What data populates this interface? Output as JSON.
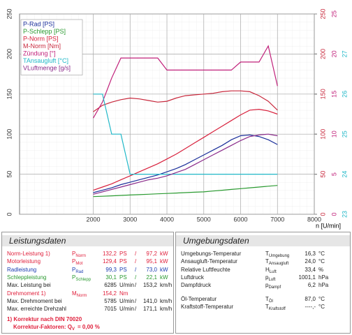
{
  "chart_data": {
    "type": "line",
    "x": [
      2000,
      2250,
      2500,
      2750,
      3000,
      3250,
      3500,
      3750,
      4000,
      4250,
      4500,
      4750,
      5000,
      5250,
      5500,
      5750,
      6000,
      6250,
      6500,
      6750,
      7000
    ],
    "xlabel": "n [U/min]",
    "xlim": [
      0,
      8000
    ],
    "xticks": [
      2000,
      3000,
      4000,
      5000,
      6000,
      7000,
      8000
    ],
    "ylim": [
      0,
      250
    ],
    "yticks": [
      0,
      50,
      100,
      150,
      200,
      250
    ],
    "y2lim": [
      0,
      250
    ],
    "y2ticks": [
      0,
      50,
      100,
      150,
      200,
      250
    ],
    "y3lim": [
      0,
      25
    ],
    "y3ticks": [
      0,
      5,
      10,
      15,
      20,
      25
    ],
    "y4lim": [
      23,
      28
    ],
    "y4ticks": [
      23,
      24,
      25,
      26,
      27
    ],
    "grid": true,
    "series": [
      {
        "name": "P-Rad [PS]",
        "color": "#1a2e9a",
        "values": [
          27,
          30,
          33,
          37,
          40,
          43,
          46,
          49,
          53,
          57,
          62,
          68,
          74,
          80,
          86,
          93,
          98,
          99,
          97,
          93,
          87
        ]
      },
      {
        "name": "P-Schlepp [PS]",
        "color": "#2a9a30",
        "values": [
          22,
          22.5,
          23,
          23.5,
          24,
          24.5,
          25,
          25.5,
          26,
          26.5,
          27,
          27.5,
          28,
          29,
          30,
          31,
          32,
          33,
          34,
          35,
          36
        ]
      },
      {
        "name": "P-Norm [PS]",
        "color": "#d8203c",
        "values": [
          30,
          34,
          38,
          43,
          48,
          53,
          58,
          63,
          69,
          75,
          82,
          89,
          96,
          103,
          110,
          117,
          124,
          130,
          131,
          129,
          125
        ]
      },
      {
        "name": "M-Norm [Nm]",
        "color": "#c8283c",
        "axis": "y2",
        "values": [
          128,
          136,
          140,
          143,
          145,
          144,
          142,
          140,
          141,
          145,
          148,
          149,
          150,
          151,
          153,
          154,
          154,
          153,
          148,
          141,
          130
        ]
      },
      {
        "name": "Zündung [°]",
        "color": "#c0207a",
        "axis": "y3",
        "values": [
          12,
          14,
          17,
          19.5,
          19.5,
          19.5,
          19.5,
          19.5,
          18,
          18,
          18,
          18,
          18,
          18,
          18,
          18,
          19,
          19,
          19,
          21,
          16
        ]
      },
      {
        "name": "TAnsaugluft [°C]",
        "color": "#20b8c8",
        "axis": "y4",
        "values": [
          26,
          26,
          25,
          25,
          24,
          24,
          24,
          24,
          24,
          24,
          24,
          24,
          24,
          24,
          24,
          24,
          24,
          24,
          24,
          24,
          24
        ]
      },
      {
        "name": "VLuftmenge [g/s]",
        "color": "#8a2a8a",
        "values": [
          25,
          28,
          31,
          34,
          37,
          40,
          43,
          45,
          48,
          52,
          56,
          62,
          68,
          74,
          80,
          86,
          92,
          97,
          99,
          100,
          98
        ]
      }
    ]
  },
  "leistungsdaten": {
    "title": "Leistungsdaten",
    "rows": [
      {
        "label": "Norm-Leistung 1)",
        "color": "#e0203c",
        "sym": "P",
        "sub": "Norm",
        "v1": "132,2",
        "u1": "PS",
        "sep": "/",
        "v2": "97,2",
        "u2": "kW"
      },
      {
        "label": "Motorleistung",
        "color": "#e0203c",
        "sym": "P",
        "sub": "Mot",
        "v1": "129,4",
        "u1": "PS",
        "sep": "/",
        "v2": "95,1",
        "u2": "kW"
      },
      {
        "label": "Radleistung",
        "color": "#1a3cb0",
        "sym": "P",
        "sub": "Rad",
        "v1": "99,3",
        "u1": "PS",
        "sep": "/",
        "v2": "73,0",
        "u2": "kW"
      },
      {
        "label": "Schleppleistung",
        "color": "#2a9a30",
        "sym": "P",
        "sub": "Schlepp",
        "v1": "30,1",
        "u1": "PS",
        "sep": "/",
        "v2": "22,1",
        "u2": "kW"
      },
      {
        "label": "Max. Leistung bei",
        "color": "#222222",
        "v1": "6285",
        "u1": "U/min",
        "sep": "/",
        "v2": "153,2",
        "u2": "km/h"
      },
      {
        "label": "Drehmoment 1)",
        "color": "#e0203c",
        "sym": "M",
        "sub": "Norm",
        "v1": "154,2",
        "u1": "Nm"
      },
      {
        "label": "Max. Drehmoment bei",
        "color": "#222222",
        "v1": "5785",
        "u1": "U/min",
        "sep": "/",
        "v2": "141,0",
        "u2": "km/h"
      },
      {
        "label": "Max. erreichte Drehzahl",
        "color": "#222222",
        "v1": "7015",
        "u1": "U/min",
        "sep": "/",
        "v2": "171,1",
        "u2": "km/h"
      }
    ],
    "footer": {
      "note": "1) Korrektur nach DIN 70020",
      "factor_label": "Korrektur-Faktoren: Q",
      "factor_sub": "V",
      "factor_value": "= 0,00 %"
    }
  },
  "umgebungsdaten": {
    "title": "Umgebungsdaten",
    "rows": [
      {
        "label": "Umgebungs-Temperatur",
        "sym": "T",
        "sub": "Umgebung",
        "value": "16,3",
        "unit": "°C"
      },
      {
        "label": "Ansaugluft-Temperatur",
        "sym": "T",
        "sub": "Ansaugluft",
        "value": "24,0",
        "unit": "°C"
      },
      {
        "label": "Relative Luftfeuchte",
        "sym": "H",
        "sub": "Luft",
        "value": "33,4",
        "unit": "%"
      },
      {
        "label": "Luftdruck",
        "sym": "p",
        "sub": "Luft",
        "value": "1001,1",
        "unit": "hPa"
      },
      {
        "label": "Dampfdruck",
        "sym": "p",
        "sub": "Dampf",
        "value": "6,2",
        "unit": "hPa"
      },
      {
        "label": "Öl-Temperatur",
        "sym": "T",
        "sub": "Öl",
        "value": "87,0",
        "unit": "°C"
      },
      {
        "label": "Kraftstoff-Temperatur",
        "sym": "T",
        "sub": "Kraftstoff",
        "value": "----,-",
        "unit": "°C"
      }
    ]
  }
}
